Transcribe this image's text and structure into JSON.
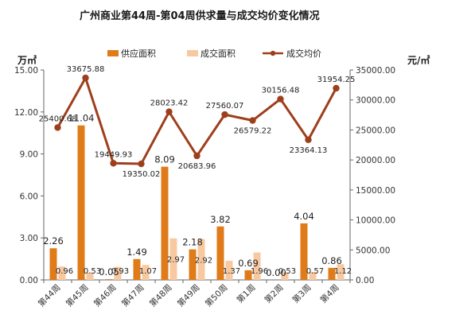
{
  "colors": {
    "supply": "#E07B1A",
    "deal": "#F8C9A0",
    "price": "#9E3F1C",
    "axis": "#666666",
    "background": "#ffffff"
  },
  "chart_data": {
    "type": "bar",
    "title": "广州商业第44周-第04周供求量与成交均价变化情况",
    "ylabel_left": "万㎡",
    "ylabel_right": "元/㎡",
    "categories": [
      "第44周",
      "第45周",
      "第46周",
      "第47周",
      "第48周",
      "第49周",
      "第50周",
      "第1周",
      "第2周",
      "第3周",
      "第4周"
    ],
    "series": [
      {
        "name": "供应面积",
        "type": "bar",
        "axis": "left",
        "values": [
          2.26,
          11.04,
          0.05,
          1.49,
          8.09,
          2.18,
          3.82,
          0.69,
          0.0,
          4.04,
          0.86
        ],
        "labels": [
          "2.26",
          "11.04",
          "0.05",
          "1.49",
          "8.09",
          "2.18",
          "3.82",
          "0.69",
          "0.00",
          "4.04",
          "0.86"
        ]
      },
      {
        "name": "成交面积",
        "type": "bar",
        "axis": "left",
        "values": [
          0.96,
          0.53,
          0.93,
          1.07,
          2.97,
          2.92,
          1.37,
          1.96,
          0.53,
          0.57,
          1.12
        ],
        "labels": [
          "0.96",
          "0.53",
          "0.93",
          "1.07",
          "2.97",
          "2.92",
          "1.37",
          "1.96",
          "0.53",
          "0.57",
          "1.12"
        ]
      },
      {
        "name": "成交均价",
        "type": "line",
        "axis": "right",
        "values": [
          25400.68,
          33675.88,
          19449.93,
          19350.02,
          28023.42,
          20683.96,
          27560.07,
          26579.22,
          30156.48,
          23364.13,
          31954.25
        ],
        "labels": [
          "25400.68",
          "33675.88",
          "19449.93",
          "19350.02",
          "28023.42",
          "20683.96",
          "27560.07",
          "26579.22",
          "30156.48",
          "23364.13",
          "31954.25"
        ]
      }
    ],
    "y_left": {
      "min": 0,
      "max": 15,
      "ticks": [
        "0.00",
        "3.00",
        "6.00",
        "9.00",
        "12.00",
        "15.00"
      ]
    },
    "y_right": {
      "min": 0,
      "max": 35000,
      "ticks": [
        "0.00",
        "5000.00",
        "10000.00",
        "15000.00",
        "20000.00",
        "25000.00",
        "30000.00",
        "35000.00"
      ]
    },
    "legend_position": "top",
    "grid": false
  }
}
